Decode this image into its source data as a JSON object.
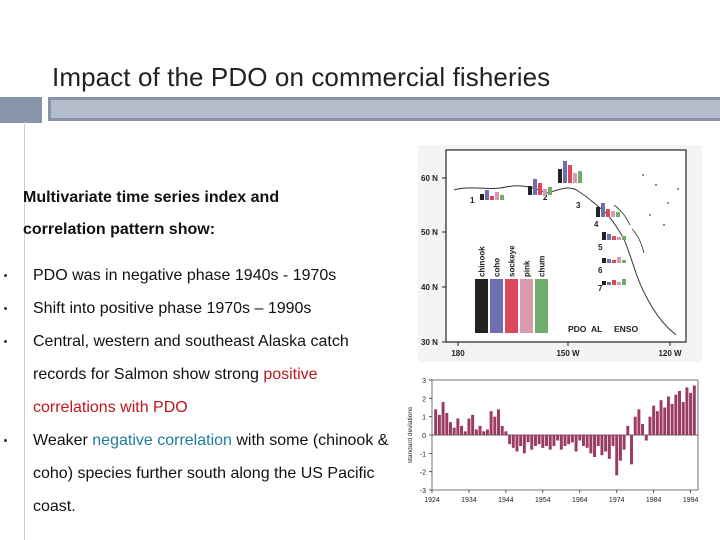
{
  "title": "Impact of the PDO on commercial fisheries",
  "intro": [
    "Multivariate time series index and",
    "correlation pattern show:"
  ],
  "bullets": [
    {
      "parts": [
        {
          "text": "PDO was in negative phase 1940s - 1970s",
          "style": "normal"
        }
      ]
    },
    {
      "parts": [
        {
          "text": "Shift into positive phase 1970s – 1990s",
          "style": "normal"
        }
      ]
    },
    {
      "parts": [
        {
          "text": "Central, western and southeast Alaska catch records for Salmon show strong ",
          "style": "normal"
        },
        {
          "text": "positive correlations with PDO",
          "style": "positive"
        }
      ]
    },
    {
      "parts": [
        {
          "text": "Weaker ",
          "style": "normal"
        },
        {
          "text": "negative correlation",
          "style": "negative"
        },
        {
          "text": " with some (chinook & coho) species further south along the US Pacific coast.",
          "style": "normal"
        }
      ]
    }
  ],
  "colors": {
    "positive": "#c0161b",
    "negative": "#1f7aa0",
    "bar": "#9b3a62",
    "accent": "#8894a8"
  },
  "chart_data": [
    {
      "type": "map",
      "lat_labels": [
        "60 N",
        "50 N",
        "40 N",
        "30 N"
      ],
      "lon_labels": [
        "180",
        "150 W",
        "120 W"
      ],
      "legend_species": [
        {
          "name": "chinook",
          "color": "#222222"
        },
        {
          "name": "coho",
          "color": "#6f6fb0"
        },
        {
          "name": "sockeye",
          "color": "#d9495a"
        },
        {
          "name": "pink",
          "color": "#d79aae"
        },
        {
          "name": "chum",
          "color": "#6fae6a"
        }
      ],
      "legend_indices": [
        "PDO",
        "AL",
        "ENSO"
      ],
      "region_numbers": [
        "1",
        "2",
        "3",
        "4",
        "5",
        "6",
        "7"
      ]
    },
    {
      "type": "bar",
      "ylabel": "standard deviations",
      "ylim": [
        -3,
        3
      ],
      "yticks": [
        3,
        2,
        1,
        0,
        -1,
        -2,
        -3
      ],
      "xticks": [
        "1924",
        "1934",
        "1944",
        "1954",
        "1964",
        "1974",
        "1984",
        "1994"
      ],
      "x": [
        1925,
        1926,
        1927,
        1928,
        1929,
        1930,
        1931,
        1932,
        1933,
        1934,
        1935,
        1936,
        1937,
        1938,
        1939,
        1940,
        1941,
        1942,
        1943,
        1944,
        1945,
        1946,
        1947,
        1948,
        1949,
        1950,
        1951,
        1952,
        1953,
        1954,
        1955,
        1956,
        1957,
        1958,
        1959,
        1960,
        1961,
        1962,
        1963,
        1964,
        1965,
        1966,
        1967,
        1968,
        1969,
        1970,
        1971,
        1972,
        1973,
        1974,
        1975,
        1976,
        1977,
        1978,
        1979,
        1980,
        1981,
        1982,
        1983,
        1984,
        1985,
        1986,
        1987,
        1988,
        1989,
        1990,
        1991,
        1992,
        1993,
        1994,
        1995
      ],
      "values": [
        1.4,
        1.1,
        1.8,
        1.2,
        0.7,
        0.4,
        0.9,
        0.5,
        0.2,
        0.9,
        1.1,
        0.3,
        0.5,
        0.2,
        0.3,
        1.3,
        1.0,
        1.4,
        0.5,
        0.2,
        -0.5,
        -0.7,
        -0.9,
        -0.6,
        -1.0,
        -0.4,
        -0.8,
        -0.6,
        -0.5,
        -0.7,
        -0.6,
        -0.8,
        -0.6,
        -0.3,
        -0.8,
        -0.6,
        -0.5,
        -0.4,
        -0.9,
        -0.3,
        -0.6,
        -0.7,
        -1.0,
        -1.2,
        -0.6,
        -1.1,
        -0.9,
        -1.3,
        -0.6,
        -2.2,
        -1.4,
        -0.8,
        0.5,
        -1.6,
        1.0,
        1.4,
        0.6,
        -0.3,
        1.0,
        1.6,
        1.3,
        1.9,
        1.5,
        2.1,
        1.7,
        2.2,
        2.4,
        1.8,
        2.6,
        2.3,
        2.7
      ]
    }
  ]
}
